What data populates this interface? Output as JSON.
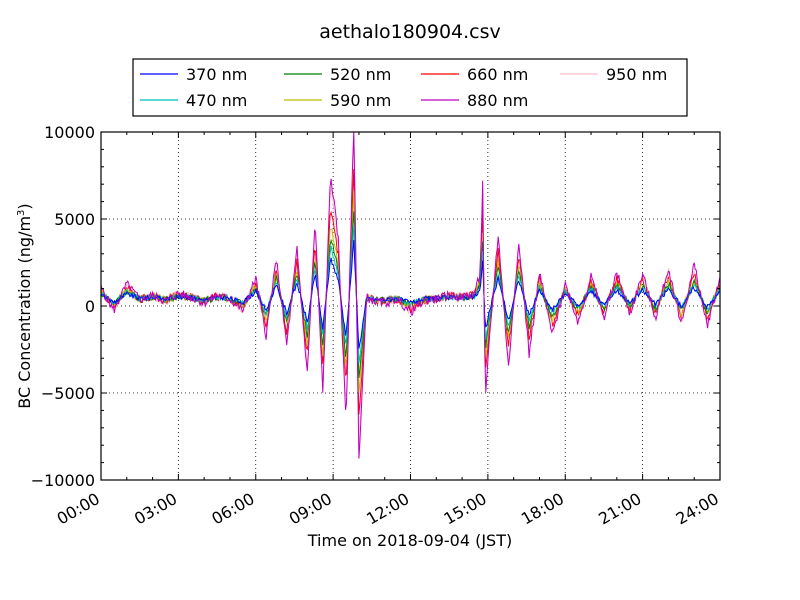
{
  "chart_data": {
    "type": "line",
    "title": "aethalo180904.csv",
    "xlabel": "Time on 2018-09-04 (JST)",
    "ylabel": "BC Concentration (ng/m",
    "ylabel_sup": "3",
    "ylabel_end": ")",
    "xlim": [
      "00:00",
      "24:00"
    ],
    "ylim": [
      -10000,
      10000
    ],
    "x_ticks": [
      "00:00",
      "03:00",
      "06:00",
      "09:00",
      "12:00",
      "15:00",
      "18:00",
      "21:00",
      "24:00"
    ],
    "y_ticks": [
      "10000",
      "5000",
      "0",
      "−5000",
      "−10000"
    ],
    "grid": true,
    "legend_position": "above plot",
    "x_unit": "hours",
    "series": [
      {
        "name": "370 nm",
        "color": "#0000ff",
        "amplitude": 0.35
      },
      {
        "name": "470 nm",
        "color": "#00bfbf",
        "amplitude": 0.45
      },
      {
        "name": "520 nm",
        "color": "#008000",
        "amplitude": 0.55
      },
      {
        "name": "590 nm",
        "color": "#bfbf00",
        "amplitude": 0.65
      },
      {
        "name": "660 nm",
        "color": "#ff0000",
        "amplitude": 0.8
      },
      {
        "name": "880 nm",
        "color": "#bf00bf",
        "amplitude": 1.1
      },
      {
        "name": "950 nm",
        "color": "#ffc0cb",
        "amplitude": 1.0
      }
    ],
    "reference_points": {
      "x": [
        0,
        0.5,
        1,
        1.5,
        2,
        2.5,
        3,
        3.5,
        4,
        4.5,
        5,
        5.5,
        6,
        6.4,
        6.8,
        7.2,
        7.6,
        8.0,
        8.3,
        8.6,
        8.9,
        9.2,
        9.5,
        9.8,
        10.0,
        10.3,
        10.6,
        11,
        11.5,
        12,
        12.5,
        13,
        13.5,
        14,
        14.5,
        14.7,
        14.8,
        14.9,
        15.1,
        15.4,
        15.8,
        16.2,
        16.6,
        17,
        17.5,
        18,
        18.5,
        19,
        19.5,
        20,
        20.5,
        21,
        21.5,
        22,
        22.5,
        23,
        23.5,
        24
      ],
      "y_880nm": [
        1000,
        -200,
        1200,
        400,
        600,
        300,
        700,
        500,
        200,
        600,
        400,
        -200,
        1500,
        -1500,
        2500,
        -2000,
        3000,
        -3500,
        4500,
        -4500,
        7000,
        3500,
        -6000,
        9800,
        -8000,
        500,
        300,
        200,
        400,
        -300,
        300,
        400,
        600,
        500,
        700,
        1800,
        6500,
        -5000,
        -1000,
        3800,
        -3200,
        3500,
        -2500,
        1800,
        -1500,
        1200,
        -800,
        1600,
        -600,
        1800,
        -400,
        1700,
        -600,
        2000,
        -900,
        2200,
        -1000,
        1500
      ]
    }
  }
}
